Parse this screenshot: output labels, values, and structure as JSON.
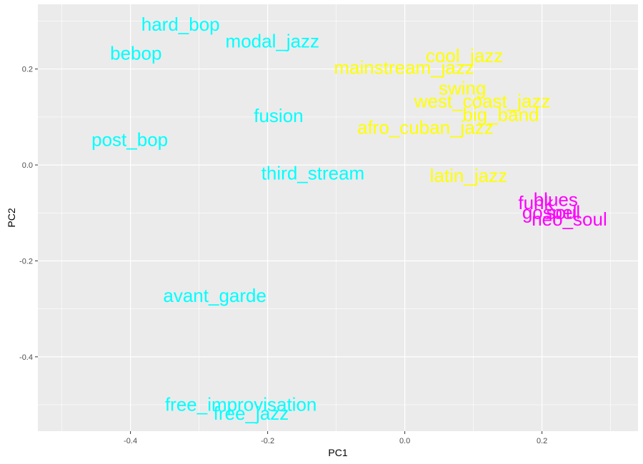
{
  "chart_data": {
    "type": "scatter",
    "xlabel": "PC1",
    "ylabel": "PC2",
    "xlim": [
      -0.535,
      0.34
    ],
    "ylim": [
      -0.555,
      0.335
    ],
    "x_ticks": [
      -0.4,
      -0.2,
      0.0,
      0.2
    ],
    "x_tick_labels": [
      "-0.4",
      "-0.2",
      "0.0",
      "0.2"
    ],
    "y_ticks": [
      -0.4,
      -0.2,
      0.0,
      0.2
    ],
    "y_tick_labels": [
      "-0.4",
      "-0.2",
      "0.0",
      "0.2"
    ],
    "grid": true,
    "panel_color": "#ebebeb",
    "grid_color": "#ffffff",
    "colors": {
      "group1": "#00ffff",
      "group2": "#ffff00",
      "group3": "#ff00ff"
    },
    "points": [
      {
        "label": "hard_bop",
        "x": -0.327,
        "y": 0.293,
        "group": "group1"
      },
      {
        "label": "modal_jazz",
        "x": -0.193,
        "y": 0.258,
        "group": "group1"
      },
      {
        "label": "bebop",
        "x": -0.392,
        "y": 0.233,
        "group": "group1"
      },
      {
        "label": "fusion",
        "x": -0.184,
        "y": 0.103,
        "group": "group1"
      },
      {
        "label": "post_bop",
        "x": -0.401,
        "y": 0.053,
        "group": "group1"
      },
      {
        "label": "third_stream",
        "x": -0.134,
        "y": -0.017,
        "group": "group1"
      },
      {
        "label": "avant_garde",
        "x": -0.277,
        "y": -0.272,
        "group": "group1"
      },
      {
        "label": "free_improvisation",
        "x": -0.239,
        "y": -0.499,
        "group": "group1"
      },
      {
        "label": "free_jazz",
        "x": -0.224,
        "y": -0.518,
        "group": "group1"
      },
      {
        "label": "cool_jazz",
        "x": 0.087,
        "y": 0.228,
        "group": "group2"
      },
      {
        "label": "mainstream_jazz",
        "x": -0.001,
        "y": 0.203,
        "group": "group2"
      },
      {
        "label": "swing",
        "x": 0.084,
        "y": 0.16,
        "group": "group2"
      },
      {
        "label": "west_coast_jazz",
        "x": 0.113,
        "y": 0.133,
        "group": "group2"
      },
      {
        "label": "big_band",
        "x": 0.14,
        "y": 0.105,
        "group": "group2"
      },
      {
        "label": "afro_cuban_jazz",
        "x": 0.03,
        "y": 0.078,
        "group": "group2"
      },
      {
        "label": "latin_jazz",
        "x": 0.093,
        "y": -0.022,
        "group": "group2"
      },
      {
        "label": "blues",
        "x": 0.22,
        "y": -0.072,
        "group": "group3"
      },
      {
        "label": "funk",
        "x": 0.191,
        "y": -0.079,
        "group": "group3"
      },
      {
        "label": "gospel",
        "x": 0.211,
        "y": -0.099,
        "group": "group3"
      },
      {
        "label": "soul",
        "x": 0.231,
        "y": -0.099,
        "group": "group3"
      },
      {
        "label": "neo_soul",
        "x": 0.24,
        "y": -0.113,
        "group": "group3"
      }
    ]
  }
}
